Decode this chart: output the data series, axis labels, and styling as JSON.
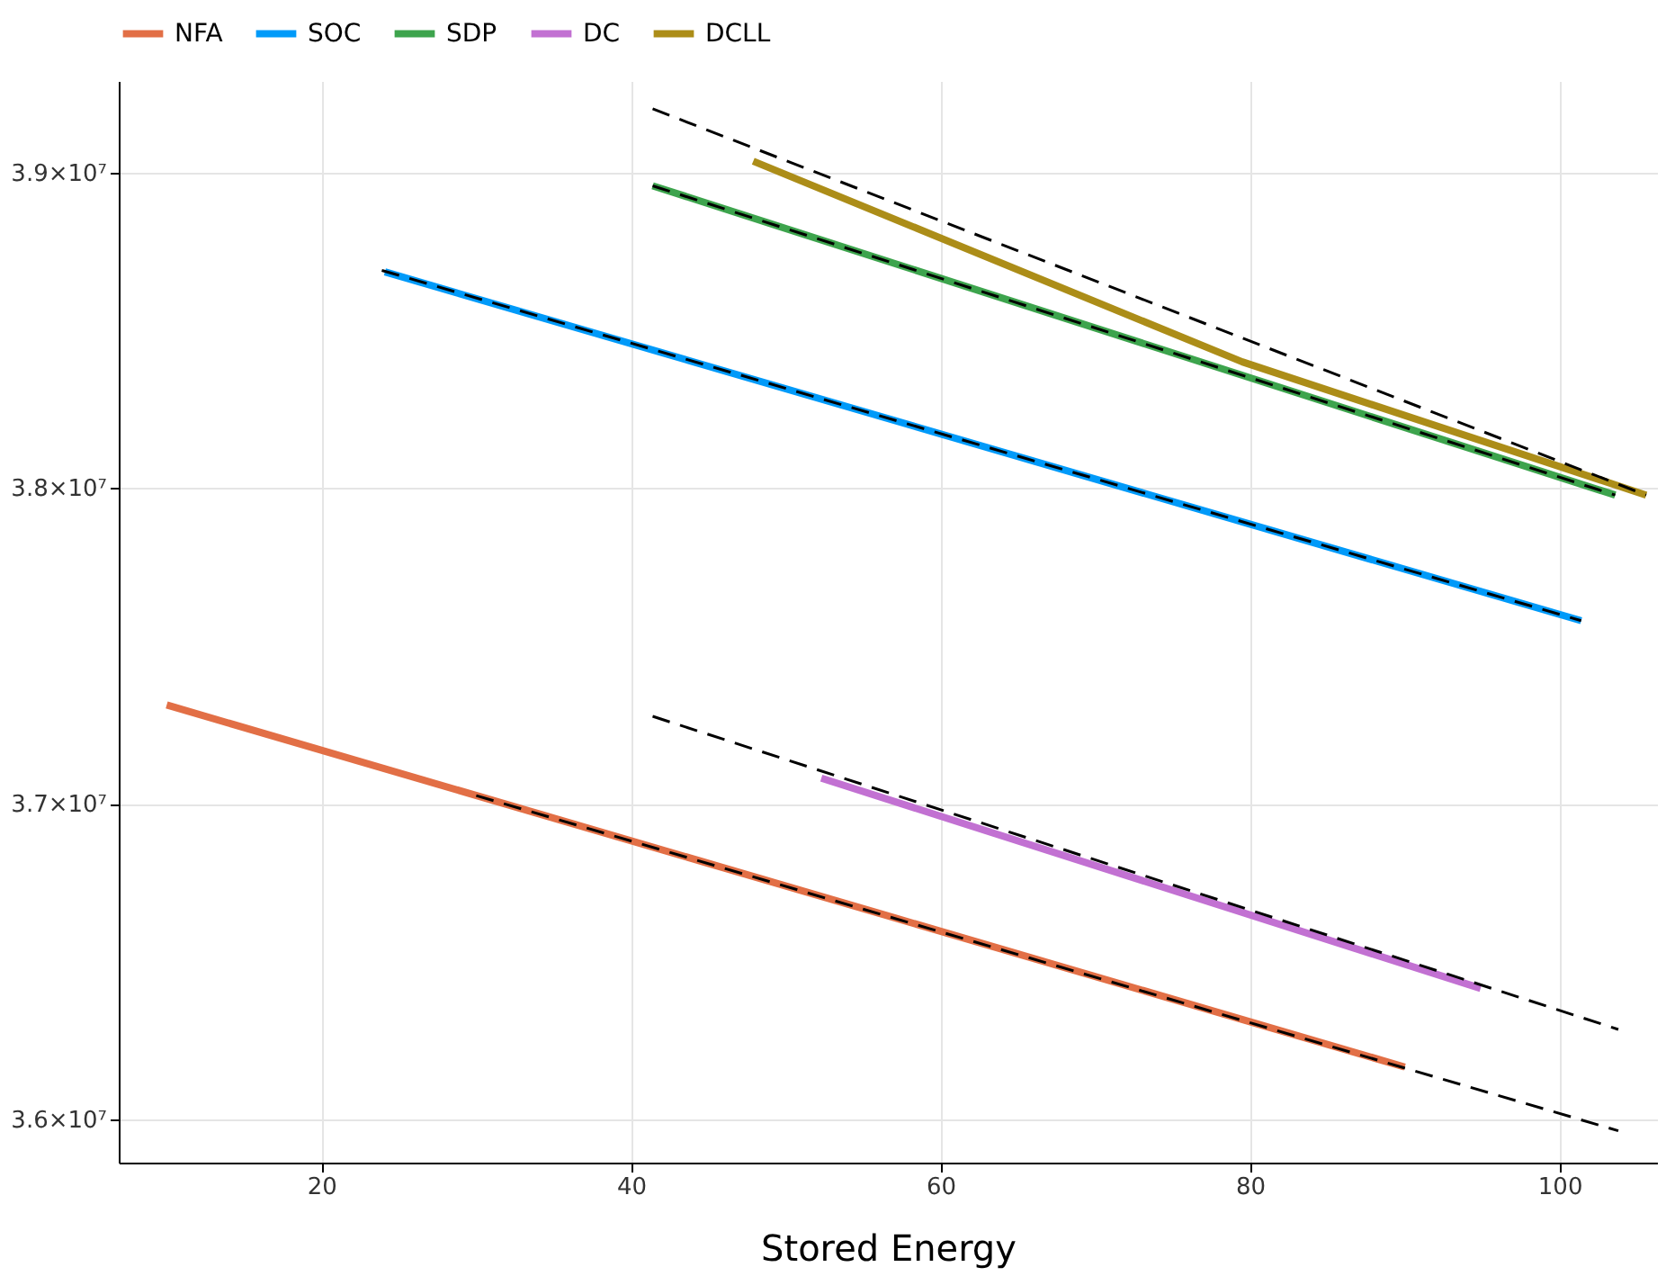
{
  "chart_data": {
    "type": "line",
    "xlabel": "Stored Energy",
    "legend": "top",
    "grid": true,
    "xlim": [
      6.9,
      106.3
    ],
    "ylim": [
      35863000,
      39290000
    ],
    "xticks": [
      20,
      40,
      60,
      80,
      100
    ],
    "yticks": [
      {
        "value": 36000000,
        "label": "3.6×10⁷"
      },
      {
        "value": 37000000,
        "label": "3.7×10⁷"
      },
      {
        "value": 38000000,
        "label": "3.8×10⁷"
      },
      {
        "value": 39000000,
        "label": "3.9×10⁷"
      }
    ],
    "series": [
      {
        "name": "NFA",
        "line_style": "solid",
        "color": "#e26f46",
        "x": [
          10,
          90
        ],
        "values": [
          37313000,
          36166000
        ]
      },
      {
        "name": "SOC",
        "line_style": "solid",
        "color": "#009af9",
        "x": [
          24.1,
          101.4
        ],
        "values": [
          38685000,
          37580000
        ]
      },
      {
        "name": "SDP",
        "line_style": "solid",
        "color": "#3da44d",
        "x": [
          41.4,
          103.6
        ],
        "values": [
          38958000,
          37978000
        ]
      },
      {
        "name": "DC",
        "line_style": "solid",
        "color": "#c271d2",
        "x": [
          52.3,
          94.9
        ],
        "values": [
          37081000,
          36415000
        ]
      },
      {
        "name": "DCLL",
        "line_style": "solid",
        "color": "#ac8d18",
        "x": [
          47.9,
          79.5,
          105.6
        ],
        "values": [
          39036000,
          38400000,
          37978000
        ]
      },
      {
        "color": "#000000",
        "line_style": "dashed",
        "x": [
          30,
          103.8
        ],
        "values": [
          37026000,
          35964000
        ]
      },
      {
        "color": "#000000",
        "line_style": "dashed",
        "x": [
          23.9,
          101.4
        ],
        "values": [
          38690000,
          37580000
        ]
      },
      {
        "color": "#000000",
        "line_style": "dashed",
        "x": [
          41.4,
          103.6
        ],
        "values": [
          38958000,
          37978000
        ]
      },
      {
        "color": "#000000",
        "line_style": "dashed",
        "x": [
          41.4,
          103.8
        ],
        "values": [
          37277000,
          36285000
        ]
      },
      {
        "color": "#000000",
        "line_style": "dashed",
        "x": [
          41.4,
          105.6
        ],
        "values": [
          39202000,
          37978000
        ]
      }
    ]
  }
}
